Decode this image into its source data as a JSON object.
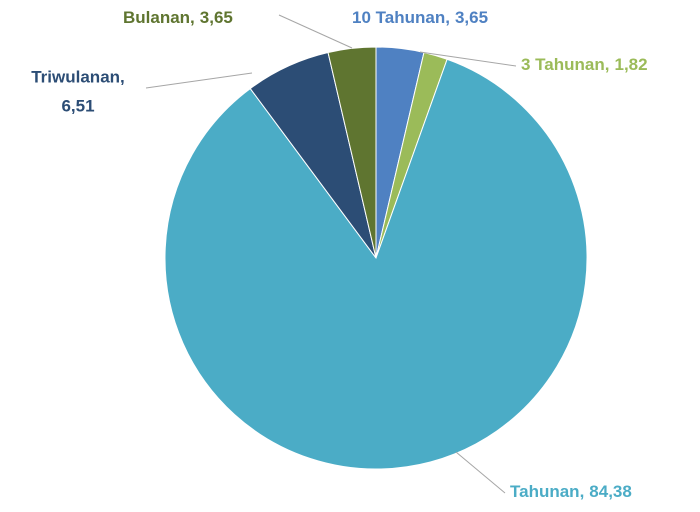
{
  "chart_data": {
    "type": "pie",
    "categories": [
      "10 Tahunan,",
      "3 Tahunan,",
      "Tahunan,",
      "Triwulanan,",
      "Bulanan,"
    ],
    "values": [
      3.65,
      1.82,
      84.38,
      6.51,
      3.65
    ],
    "value_labels": [
      "3,65",
      "1,82",
      "84,38",
      "6,51",
      "3,65"
    ],
    "colors": [
      "#4f81c2",
      "#9bbb59",
      "#4bacc6",
      "#2c4d75",
      "#5f7530"
    ]
  }
}
